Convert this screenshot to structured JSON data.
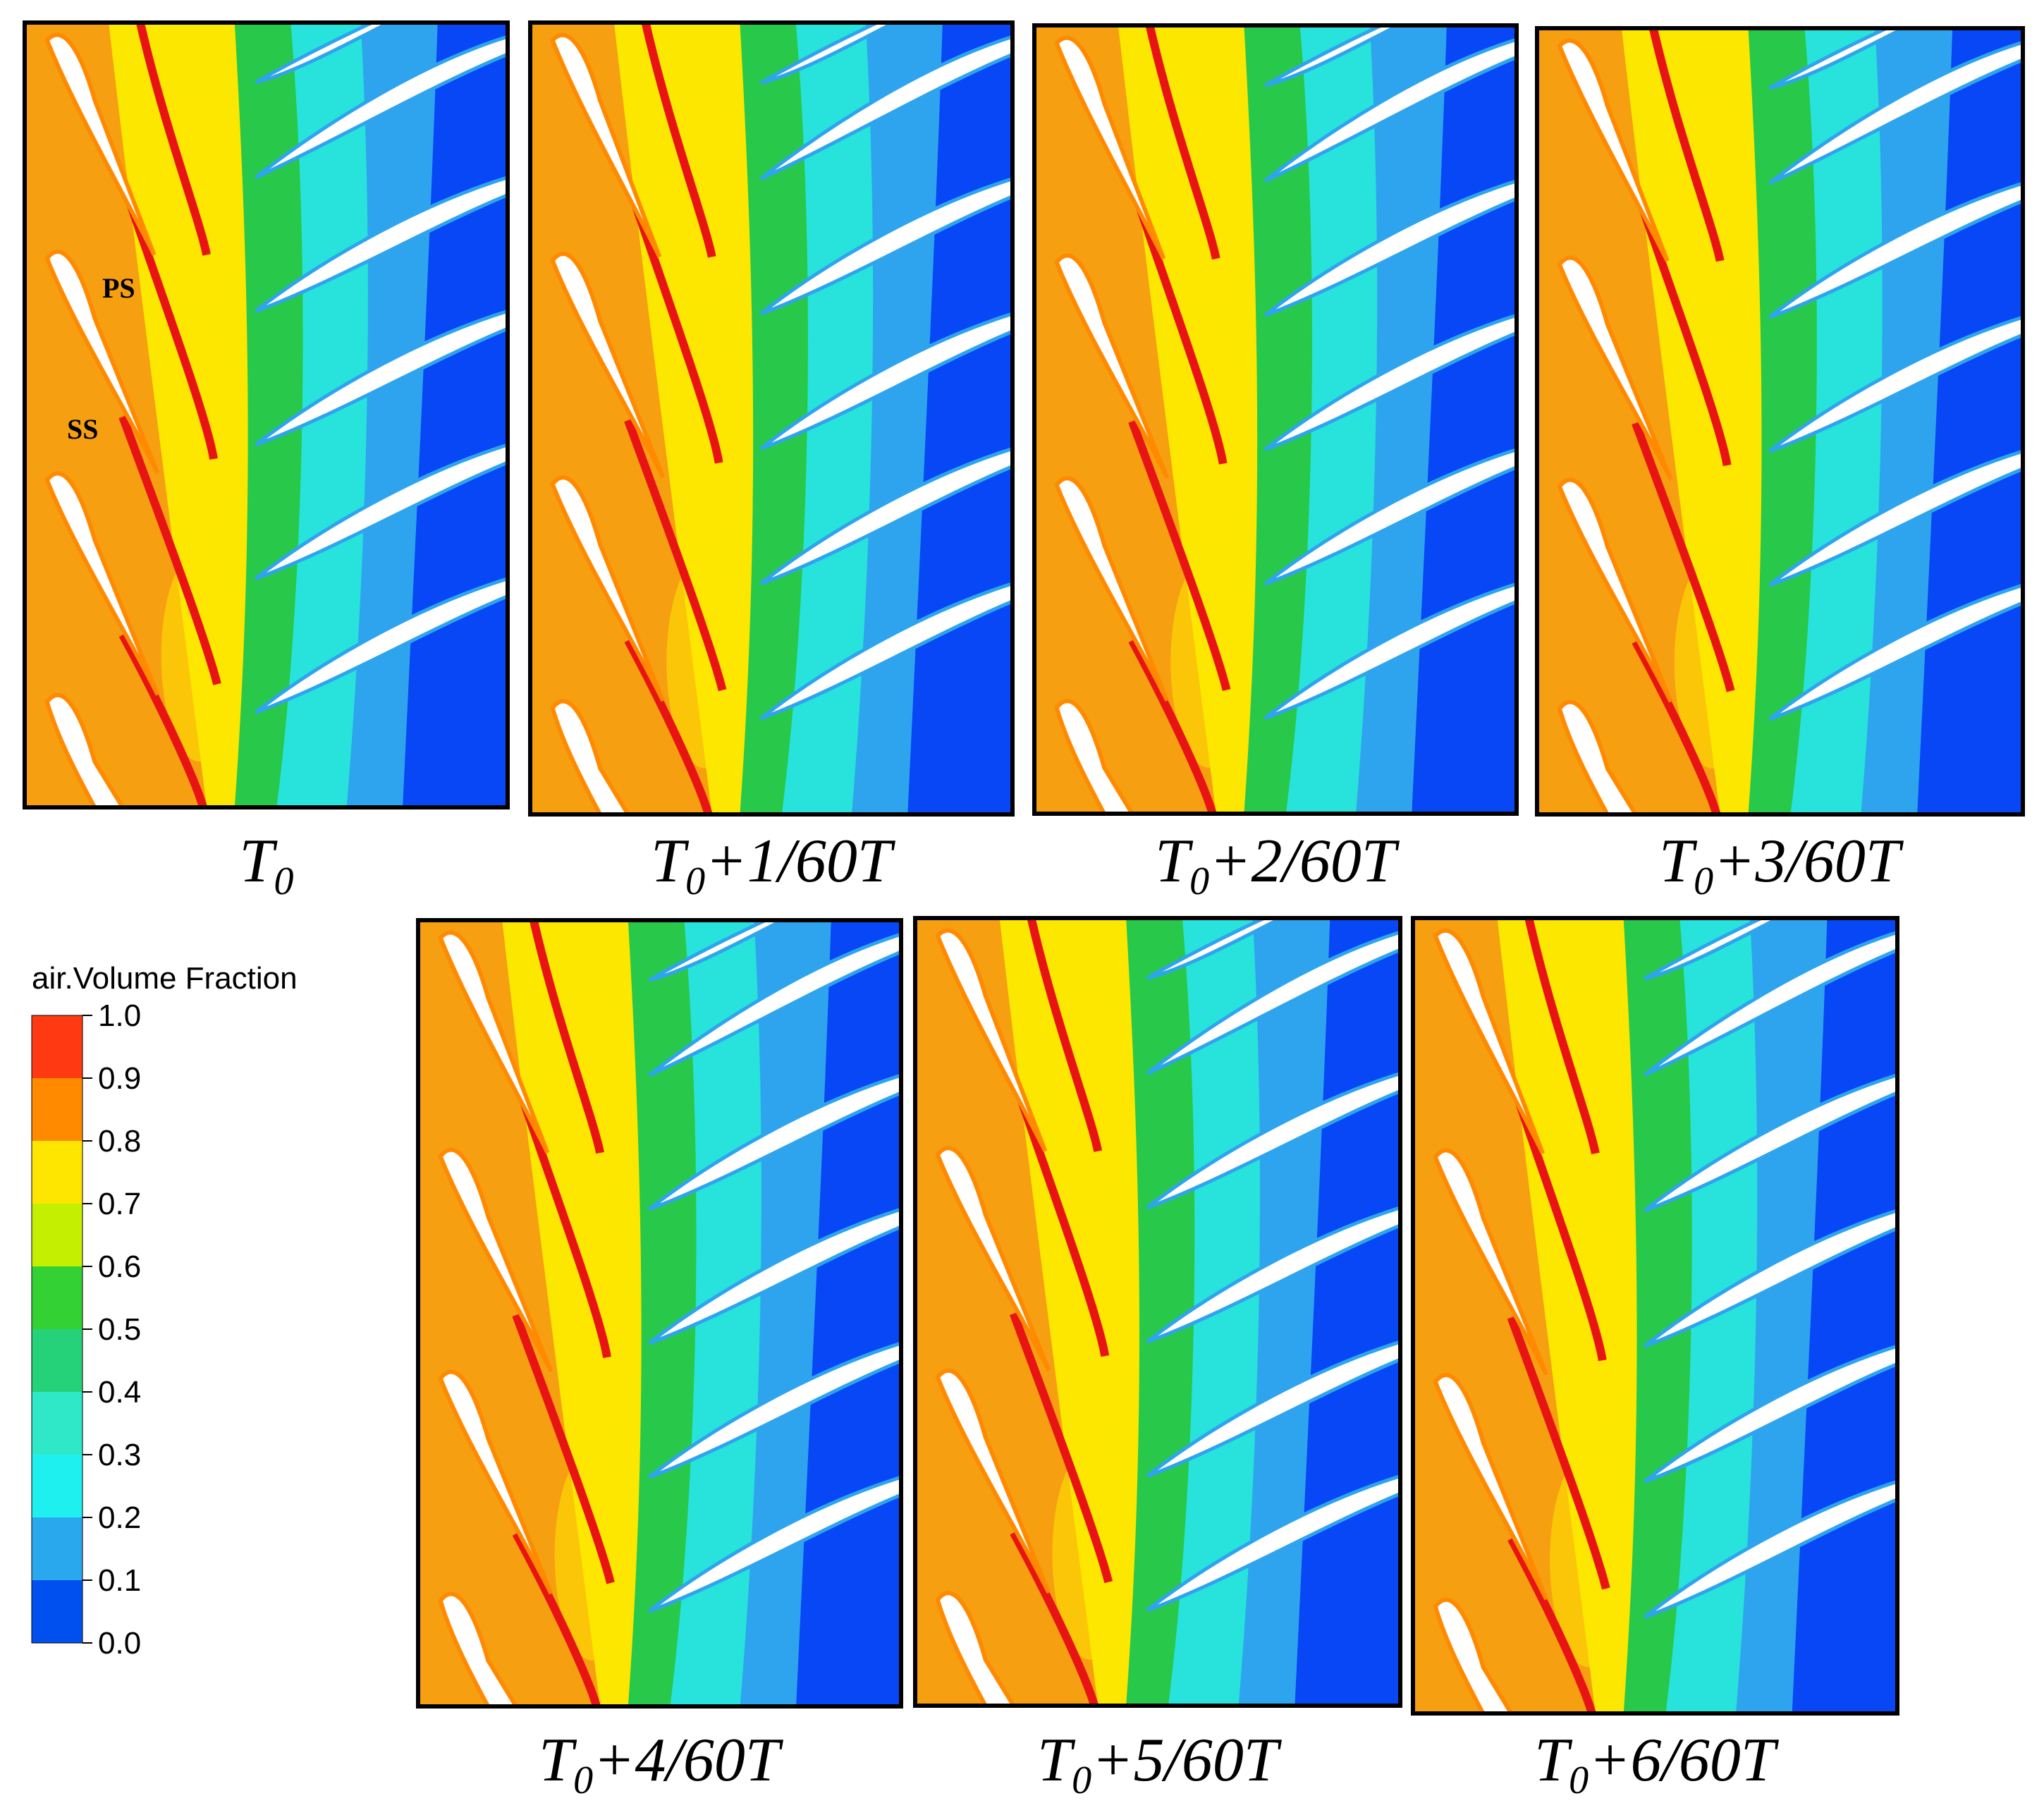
{
  "figure": {
    "panels": [
      {
        "base": "T",
        "sub": "0",
        "suffix": ""
      },
      {
        "base": "T",
        "sub": "0",
        "suffix": "+1/60T"
      },
      {
        "base": "T",
        "sub": "0",
        "suffix": "+2/60T"
      },
      {
        "base": "T",
        "sub": "0",
        "suffix": "+3/60T"
      },
      {
        "base": "T",
        "sub": "0",
        "suffix": "+4/60T"
      },
      {
        "base": "T",
        "sub": "0",
        "suffix": "+5/60T"
      },
      {
        "base": "T",
        "sub": "0",
        "suffix": "+6/60T"
      }
    ],
    "annotations": {
      "pressure_side": "PS",
      "suction_side": "SS"
    }
  },
  "legend": {
    "title": "air.Volume Fraction",
    "ticks": [
      "1.0",
      "0.9",
      "0.8",
      "0.7",
      "0.6",
      "0.5",
      "0.4",
      "0.3",
      "0.2",
      "0.1",
      "0.0"
    ],
    "colors": [
      "#ff3a12",
      "#ff8a00",
      "#ffe600",
      "#c4f000",
      "#33d133",
      "#25d27a",
      "#2ee8c8",
      "#1ef0f0",
      "#2aa8ee",
      "#0050f0"
    ]
  },
  "palette": {
    "orange": "#f59f11",
    "yellow": "#fbe700",
    "red": "#e81414",
    "green": "#28c84a",
    "cyan": "#27e3dc",
    "light_blue": "#2fa4ee",
    "blue": "#0747f5",
    "blade": "#ffffff",
    "frame": "#000000"
  }
}
